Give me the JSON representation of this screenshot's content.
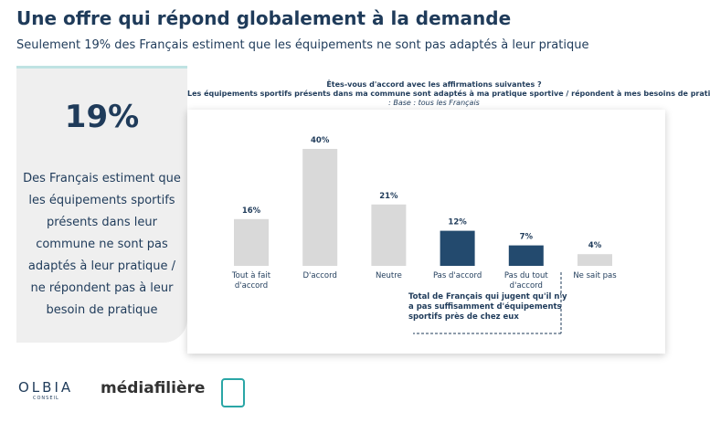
{
  "header": {
    "title": "Une offre qui répond globalement à la demande",
    "subtitle": "Seulement 19% des Français estiment que les équipements ne sont pas adaptés à leur pratique"
  },
  "callout": {
    "value": "19%",
    "text": "Des Français estiment que les équipements sportifs présents dans leur commune ne sont pas adaptés à leur pratique / ne répondent pas à leur besoin de pratique"
  },
  "chart_data": {
    "type": "bar",
    "title": "Êtes-vous d'accord avec les affirmations suivantes ?",
    "subtitle": "Les équipements sportifs présents dans ma commune sont adaptés à ma pratique sportive / répondent à mes besoins de pratique",
    "base": ": Base : tous les Français",
    "categories": [
      "Tout à fait d'accord",
      "D'accord",
      "Neutre",
      "Pas d'accord",
      "Pas du tout d'accord",
      "Ne sait pas"
    ],
    "values": [
      16,
      40,
      21,
      12,
      7,
      4
    ],
    "value_labels": [
      "16%",
      "40%",
      "21%",
      "12%",
      "7%",
      "4%"
    ],
    "colors": [
      "#d9d9d9",
      "#d9d9d9",
      "#d9d9d9",
      "#234a6e",
      "#234a6e",
      "#d9d9d9"
    ],
    "annotation": "Total de Français qui jugent qu'il n'y a pas suffisamment d'équipements sportifs près de chez eux"
  },
  "logos": {
    "olbia": "OLBIA",
    "olbia_sub": "CONSEIL",
    "media": "médiafilière"
  }
}
